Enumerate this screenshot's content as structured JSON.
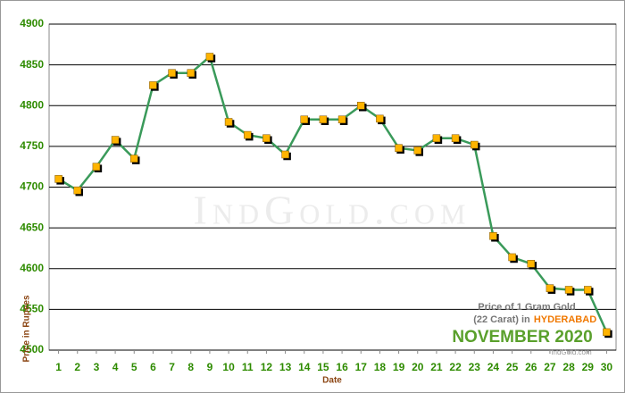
{
  "chart_data": {
    "type": "line",
    "x": [
      1,
      2,
      3,
      4,
      5,
      6,
      7,
      8,
      9,
      10,
      11,
      12,
      13,
      14,
      15,
      16,
      17,
      18,
      19,
      20,
      21,
      22,
      23,
      24,
      25,
      26,
      27,
      28,
      29,
      30
    ],
    "series": [
      {
        "color": "#3a9a5a",
        "marker_color": "#ffb400",
        "values": [
          4710,
          4696,
          4725,
          4758,
          4735,
          4825,
          4840,
          4840,
          4860,
          4780,
          4764,
          4760,
          4740,
          4783,
          4783,
          4783,
          4800,
          4784,
          4748,
          4745,
          4760,
          4760,
          4752,
          4640,
          4614,
          4606,
          4576,
          4574,
          4574,
          4522
        ]
      }
    ],
    "xlim": [
      0.5,
      30.5
    ],
    "xticks": [
      1,
      2,
      3,
      4,
      5,
      6,
      7,
      8,
      9,
      10,
      11,
      12,
      13,
      14,
      15,
      16,
      17,
      18,
      19,
      20,
      21,
      22,
      23,
      24,
      25,
      26,
      27,
      28,
      29,
      30
    ],
    "ylim": [
      4500,
      4900
    ],
    "yticks": [
      4500,
      4550,
      4600,
      4650,
      4700,
      4750,
      4800,
      4850,
      4900
    ],
    "grid": true,
    "xlabel": "Date",
    "ylabel": "Price in Rupees",
    "watermark": "IndGold.com",
    "info_box": {
      "line1": "Price of 1 Gram Gold",
      "line2": "(22 Carat) in",
      "city": "HYDERABAD",
      "period": "NOVEMBER 2020",
      "source": "IndGold.com"
    }
  }
}
